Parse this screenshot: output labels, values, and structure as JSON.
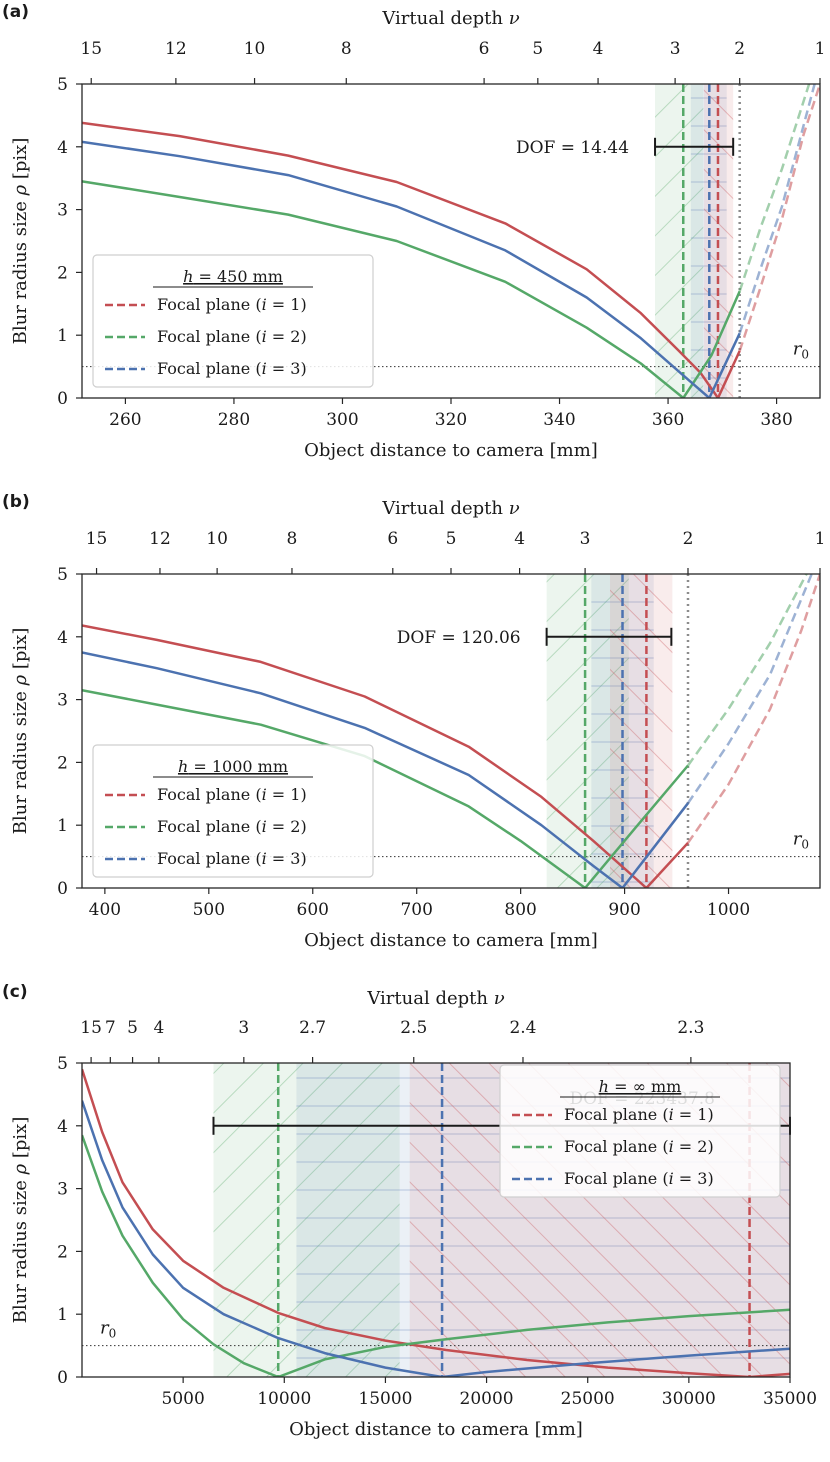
{
  "colors": {
    "red": "#c44e52",
    "green": "#55a868",
    "blue": "#4c72b0",
    "ref_gray": "#8c8c8c",
    "axis": "#262626"
  },
  "chart_data": [
    {
      "panel_label": "(a)",
      "type": "line",
      "xlabel": "Object distance to camera [mm]",
      "ylabel": "Blur radius size ρ [pix]",
      "top_axis_label": "Virtual depth ν",
      "xlim": [
        252,
        388
      ],
      "ylim": [
        0,
        5
      ],
      "x_ticks": [
        260,
        280,
        300,
        320,
        340,
        360,
        380
      ],
      "y_ticks": [
        0,
        1,
        2,
        3,
        4,
        5
      ],
      "top_ticks": [
        {
          "label": "15",
          "x": 253.7
        },
        {
          "label": "12",
          "x": 269.3
        },
        {
          "label": "10",
          "x": 283.8
        },
        {
          "label": "8",
          "x": 300.7
        },
        {
          "label": "6",
          "x": 326.1
        },
        {
          "label": "5",
          "x": 336.0
        },
        {
          "label": "4",
          "x": 347.1
        },
        {
          "label": "3",
          "x": 361.3
        },
        {
          "label": "2",
          "x": 373.2
        },
        {
          "label": "1",
          "x": 388.0
        }
      ],
      "legend_title": "h = 450 mm",
      "legend_position": "center-left",
      "series": [
        {
          "name": "Focal plane (i = 1)",
          "color": "red",
          "focal_x": 369.2,
          "points": [
            [
              252,
              4.38
            ],
            [
              270,
              4.17
            ],
            [
              290,
              3.86
            ],
            [
              310,
              3.44
            ],
            [
              330,
              2.78
            ],
            [
              345,
              2.05
            ],
            [
              355,
              1.35
            ],
            [
              362,
              0.75
            ],
            [
              366,
              0.4
            ],
            [
              369.2,
              0
            ]
          ],
          "rise": [
            [
              369.2,
              0
            ],
            [
              373.2,
              0.75
            ]
          ],
          "rise_dashed": [
            [
              373.2,
              0.75
            ],
            [
              377,
              1.75
            ],
            [
              381,
              2.85
            ],
            [
              385,
              4.2
            ],
            [
              388,
              5.0
            ]
          ],
          "dof_span": [
            366.6,
            372.0
          ]
        },
        {
          "name": "Focal plane (i = 2)",
          "color": "green",
          "focal_x": 362.8,
          "points": [
            [
              252,
              3.45
            ],
            [
              270,
              3.2
            ],
            [
              290,
              2.92
            ],
            [
              310,
              2.5
            ],
            [
              330,
              1.85
            ],
            [
              345,
              1.12
            ],
            [
              355,
              0.55
            ],
            [
              362.8,
              0
            ]
          ],
          "rise": [
            [
              362.8,
              0
            ],
            [
              368,
              0.68
            ],
            [
              373.2,
              1.7
            ]
          ],
          "rise_dashed": [
            [
              373.2,
              1.7
            ],
            [
              377,
              2.7
            ],
            [
              381,
              3.65
            ],
            [
              386,
              5.0
            ]
          ],
          "dof_span": [
            357.6,
            366.5
          ]
        },
        {
          "name": "Focal plane (i = 3)",
          "color": "blue",
          "focal_x": 367.6,
          "points": [
            [
              252,
              4.08
            ],
            [
              270,
              3.85
            ],
            [
              290,
              3.55
            ],
            [
              310,
              3.05
            ],
            [
              330,
              2.35
            ],
            [
              345,
              1.6
            ],
            [
              355,
              0.95
            ],
            [
              362,
              0.42
            ],
            [
              367.6,
              0
            ]
          ],
          "rise": [
            [
              367.6,
              0
            ],
            [
              373.2,
              1.03
            ]
          ],
          "rise_dashed": [
            [
              373.2,
              1.03
            ],
            [
              377,
              2.05
            ],
            [
              381,
              3.05
            ],
            [
              387,
              5.0
            ]
          ],
          "dof_span": [
            364.2,
            370.8
          ]
        }
      ],
      "r0": {
        "label": "r0",
        "value": 0.5
      },
      "reference_x": 373.2,
      "dof": {
        "label": "DOF = 14.44",
        "value": 14.44,
        "x_start": 357.6,
        "x_end": 372.0,
        "y": 4.0
      }
    },
    {
      "panel_label": "(b)",
      "type": "line",
      "xlabel": "Object distance to camera [mm]",
      "ylabel": "Blur radius size ρ [pix]",
      "top_axis_label": "Virtual depth ν",
      "xlim": [
        378,
        1088
      ],
      "ylim": [
        0,
        5
      ],
      "x_ticks": [
        400,
        500,
        600,
        700,
        800,
        900,
        1000
      ],
      "y_ticks": [
        0,
        1,
        2,
        3,
        4,
        5
      ],
      "top_ticks": [
        {
          "label": "15",
          "x": 392
        },
        {
          "label": "12",
          "x": 453
        },
        {
          "label": "10",
          "x": 508
        },
        {
          "label": "8",
          "x": 580
        },
        {
          "label": "6",
          "x": 677
        },
        {
          "label": "5",
          "x": 733
        },
        {
          "label": "4",
          "x": 799
        },
        {
          "label": "3",
          "x": 862
        },
        {
          "label": "2",
          "x": 961
        },
        {
          "label": "1",
          "x": 1088
        }
      ],
      "legend_title": "h = 1000 mm",
      "legend_position": "lower-left",
      "series": [
        {
          "name": "Focal plane (i = 1)",
          "color": "red",
          "focal_x": 921,
          "points": [
            [
              378,
              4.18
            ],
            [
              450,
              3.95
            ],
            [
              550,
              3.6
            ],
            [
              650,
              3.05
            ],
            [
              750,
              2.25
            ],
            [
              820,
              1.45
            ],
            [
              870,
              0.75
            ],
            [
              921,
              0
            ]
          ],
          "rise": [
            [
              921,
              0
            ],
            [
              961,
              0.72
            ]
          ],
          "rise_dashed": [
            [
              961,
              0.72
            ],
            [
              1000,
              1.65
            ],
            [
              1040,
              2.85
            ],
            [
              1070,
              4.1
            ],
            [
              1088,
              5.0
            ]
          ],
          "dof_span": [
            886,
            946
          ]
        },
        {
          "name": "Focal plane (i = 2)",
          "color": "green",
          "focal_x": 862,
          "points": [
            [
              378,
              3.15
            ],
            [
              450,
              2.92
            ],
            [
              550,
              2.6
            ],
            [
              650,
              2.1
            ],
            [
              750,
              1.3
            ],
            [
              800,
              0.75
            ],
            [
              862,
              0
            ]
          ],
          "rise": [
            [
              862,
              0
            ],
            [
              910,
              0.95
            ],
            [
              961,
              1.95
            ]
          ],
          "rise_dashed": [
            [
              961,
              1.95
            ],
            [
              1000,
              2.85
            ],
            [
              1040,
              3.9
            ],
            [
              1075,
              5.0
            ]
          ],
          "dof_span": [
            825,
            904
          ]
        },
        {
          "name": "Focal plane (i = 3)",
          "color": "blue",
          "focal_x": 898,
          "points": [
            [
              378,
              3.75
            ],
            [
              450,
              3.5
            ],
            [
              550,
              3.1
            ],
            [
              650,
              2.55
            ],
            [
              750,
              1.8
            ],
            [
              820,
              1.0
            ],
            [
              870,
              0.35
            ],
            [
              898,
              0
            ]
          ],
          "rise": [
            [
              898,
              0
            ],
            [
              961,
              1.35
            ]
          ],
          "rise_dashed": [
            [
              961,
              1.35
            ],
            [
              1000,
              2.3
            ],
            [
              1040,
              3.4
            ],
            [
              1080,
              5.0
            ]
          ],
          "dof_span": [
            868,
            928
          ]
        }
      ],
      "r0": {
        "label": "r0",
        "value": 0.5
      },
      "reference_x": 961,
      "dof": {
        "label": "DOF = 120.06",
        "value": 120.06,
        "x_start": 825,
        "x_end": 945,
        "y": 4.0
      }
    },
    {
      "panel_label": "(c)",
      "type": "line",
      "xlabel": "Object distance to camera [mm]",
      "ylabel": "Blur radius size ρ [pix]",
      "top_axis_label": "Virtual depth ν",
      "xlim": [
        0,
        35000
      ],
      "ylim": [
        0,
        5
      ],
      "x_ticks": [
        5000,
        10000,
        15000,
        20000,
        25000,
        30000,
        35000
      ],
      "y_ticks": [
        0,
        1,
        2,
        3,
        4,
        5
      ],
      "top_ticks": [
        {
          "label": "15",
          "x": 450
        },
        {
          "label": "7",
          "x": 1400
        },
        {
          "label": "5",
          "x": 2500
        },
        {
          "label": "4",
          "x": 3800
        },
        {
          "label": "3",
          "x": 8000
        },
        {
          "label": "2.7",
          "x": 11400
        },
        {
          "label": "2.5",
          "x": 16400
        },
        {
          "label": "2.4",
          "x": 21800
        },
        {
          "label": "2.3",
          "x": 30100
        }
      ],
      "legend_title": "h = ∞ mm",
      "legend_position": "center-right",
      "series": [
        {
          "name": "Focal plane (i = 1)",
          "color": "red",
          "focal_x": 33000,
          "points": [
            [
              0,
              4.9
            ],
            [
              1000,
              3.9
            ],
            [
              2000,
              3.1
            ],
            [
              3500,
              2.35
            ],
            [
              5000,
              1.85
            ],
            [
              7000,
              1.42
            ],
            [
              9700,
              1.02
            ],
            [
              12000,
              0.78
            ],
            [
              15000,
              0.58
            ],
            [
              18000,
              0.43
            ],
            [
              22000,
              0.27
            ],
            [
              26000,
              0.15
            ],
            [
              30000,
              0.06
            ],
            [
              33000,
              0
            ],
            [
              35000,
              0.05
            ]
          ],
          "dof_span": [
            16200,
            35000
          ]
        },
        {
          "name": "Focal plane (i = 2)",
          "color": "green",
          "focal_x": 9700,
          "points": [
            [
              0,
              3.85
            ],
            [
              1000,
              2.95
            ],
            [
              2000,
              2.25
            ],
            [
              3500,
              1.5
            ],
            [
              5000,
              0.92
            ],
            [
              6500,
              0.52
            ],
            [
              8000,
              0.22
            ],
            [
              9700,
              0
            ],
            [
              12000,
              0.28
            ],
            [
              15000,
              0.48
            ],
            [
              18000,
              0.6
            ],
            [
              22000,
              0.75
            ],
            [
              26000,
              0.87
            ],
            [
              30000,
              0.97
            ],
            [
              35000,
              1.07
            ]
          ],
          "dof_span": [
            6500,
            15700
          ]
        },
        {
          "name": "Focal plane (i = 3)",
          "color": "blue",
          "focal_x": 17800,
          "points": [
            [
              0,
              4.4
            ],
            [
              1000,
              3.45
            ],
            [
              2000,
              2.7
            ],
            [
              3500,
              1.95
            ],
            [
              5000,
              1.42
            ],
            [
              7000,
              1.0
            ],
            [
              9700,
              0.62
            ],
            [
              12000,
              0.38
            ],
            [
              15000,
              0.15
            ],
            [
              17800,
              0
            ],
            [
              20000,
              0.08
            ],
            [
              25000,
              0.22
            ],
            [
              30000,
              0.34
            ],
            [
              35000,
              0.45
            ]
          ],
          "dof_span": [
            10600,
            35000
          ]
        }
      ],
      "r0": {
        "label": "r0",
        "value": 0.5
      },
      "dof": {
        "label": "DOF = 223437.8",
        "value": 223437.8,
        "x_start": 6500,
        "x_end": 35000,
        "y": 4.0
      }
    }
  ]
}
